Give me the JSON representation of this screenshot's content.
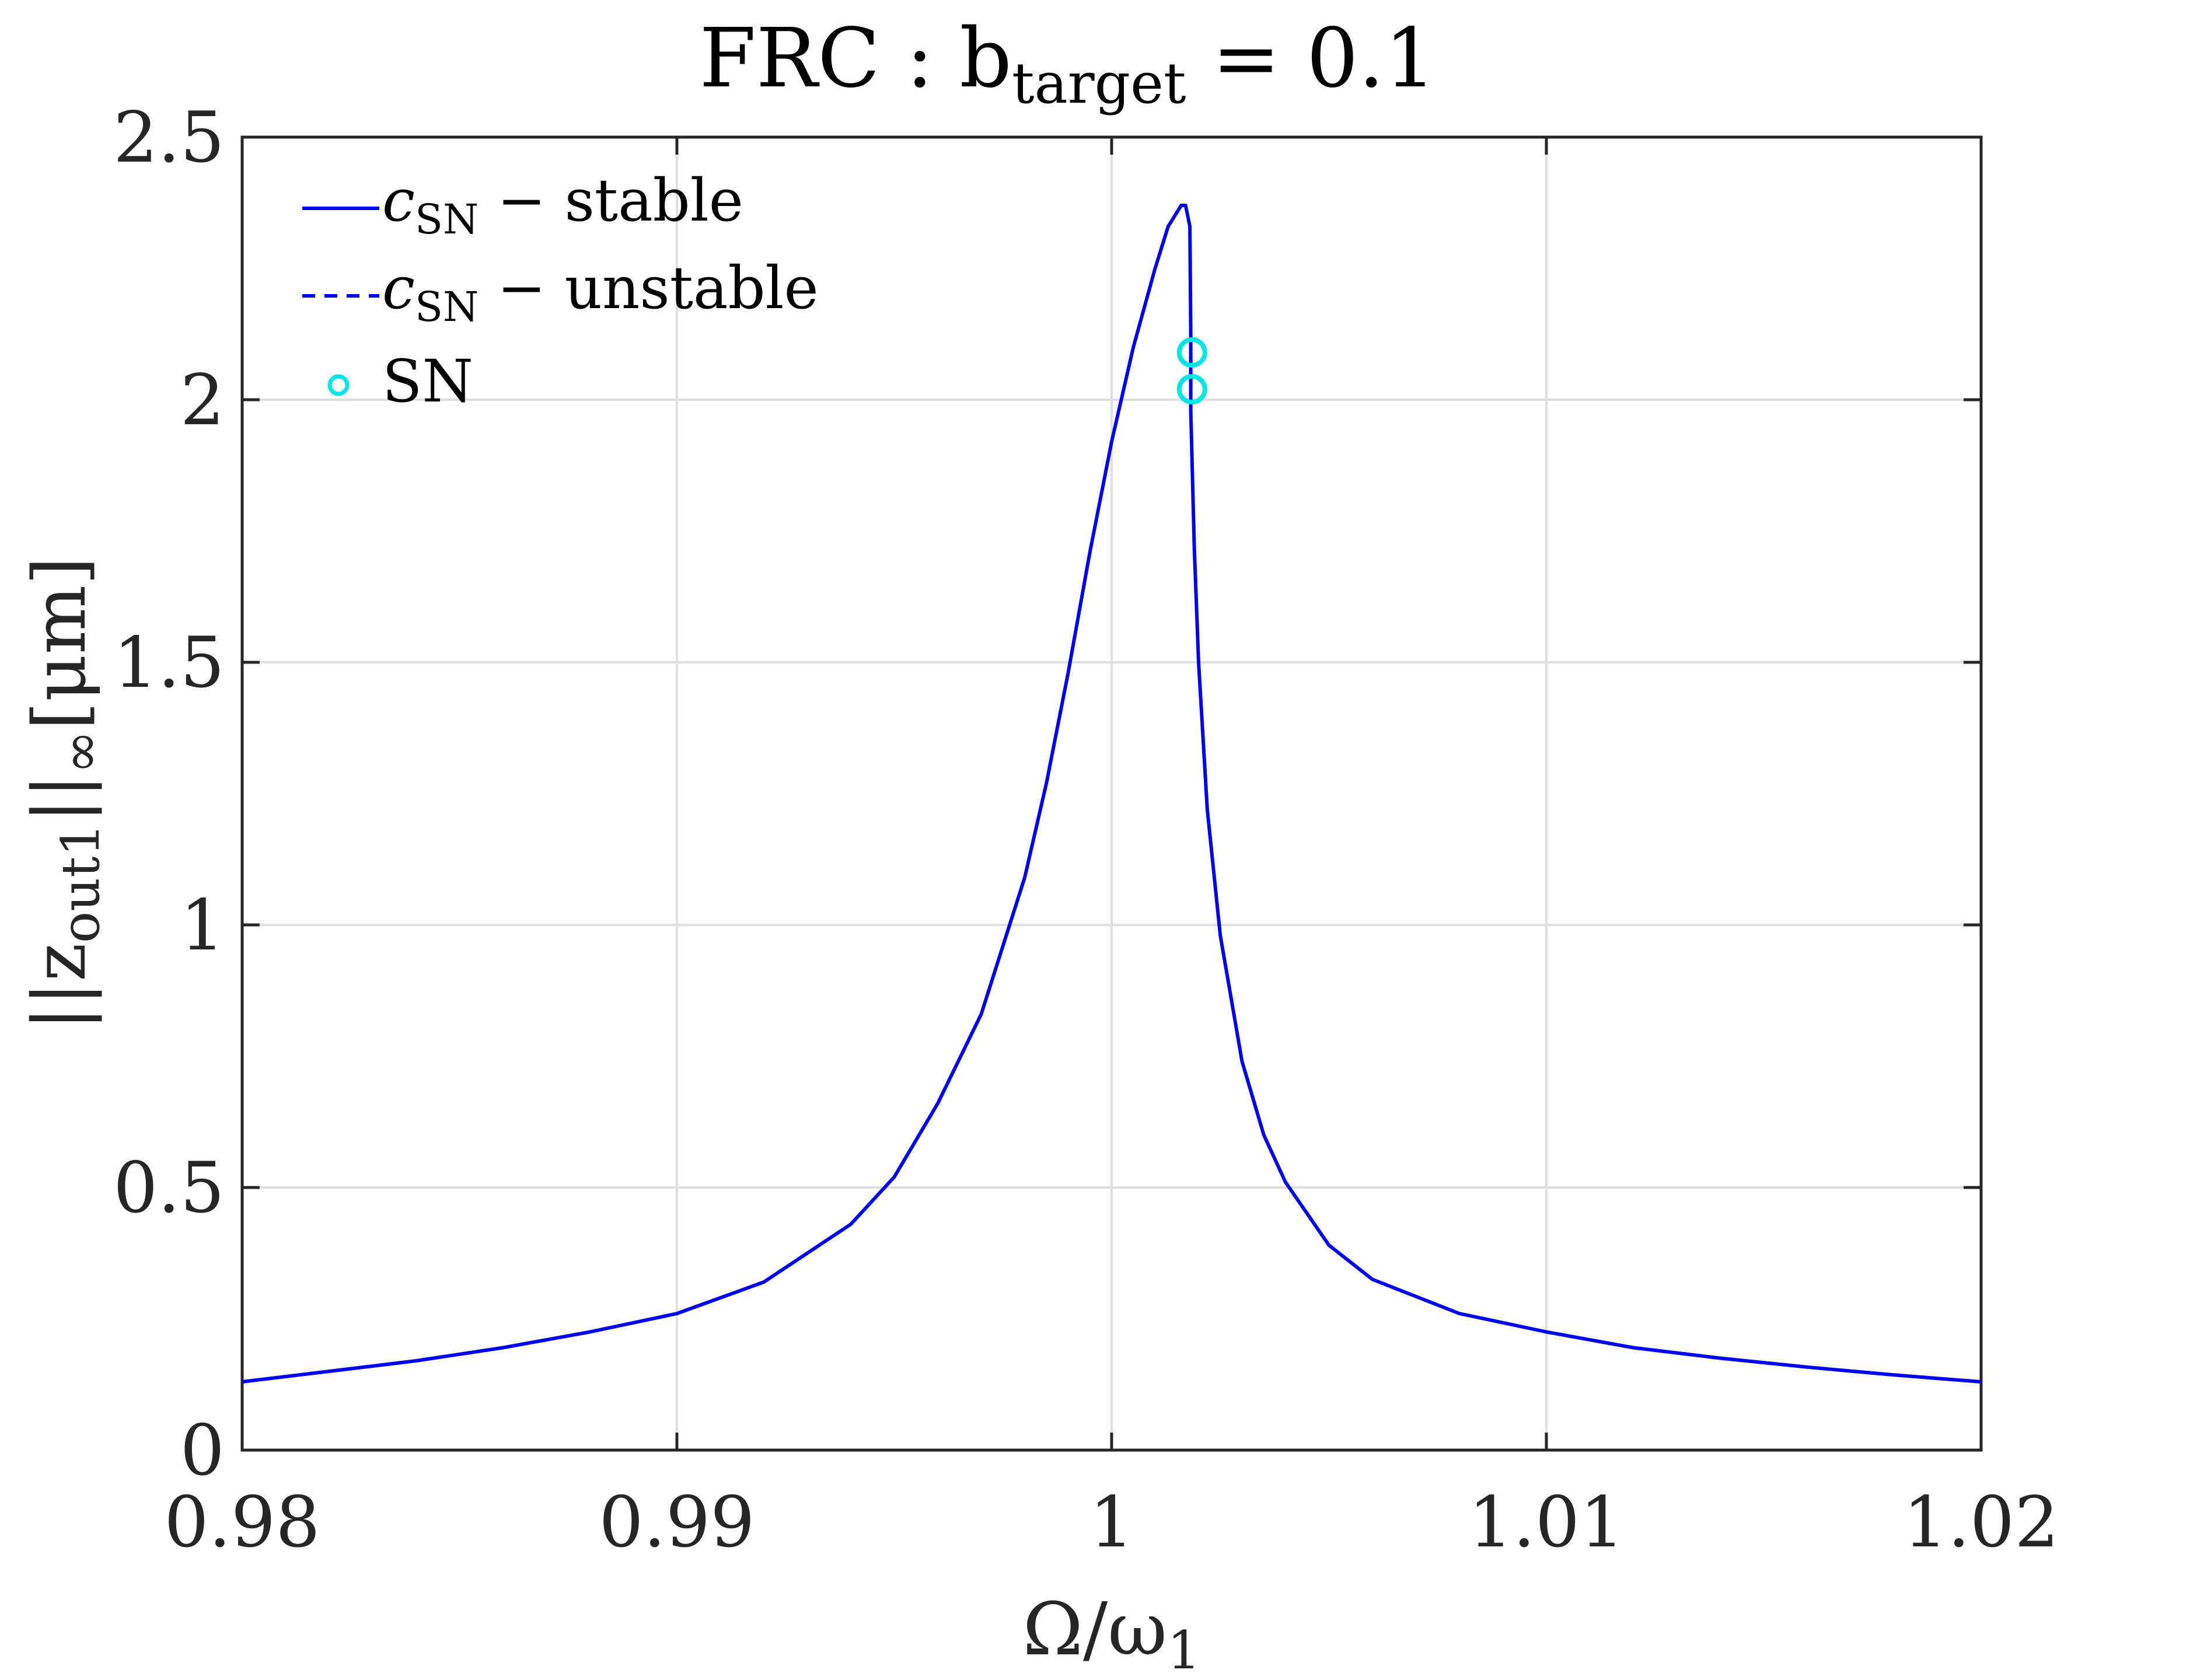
{
  "chart_data": {
    "type": "line",
    "title": {
      "main": "FRC : b",
      "subscript": "target",
      "suffix": " = 0.1"
    },
    "xlabel": {
      "main": "Ω/ω",
      "subscript": "1"
    },
    "ylabel": {
      "prefix": "||z",
      "subscript": "out1",
      "suffix": "||",
      "suffix_subscript": "∞",
      "unit": "[μm]"
    },
    "xlim": [
      0.98,
      1.02
    ],
    "ylim": [
      0,
      2.5
    ],
    "xticks": [
      0.98,
      0.99,
      1.0,
      1.01,
      1.02
    ],
    "xtick_labels": [
      "0.98",
      "0.99",
      "1",
      "1.01",
      "1.02"
    ],
    "yticks": [
      0,
      0.5,
      1.0,
      1.5,
      2.0,
      2.5
    ],
    "ytick_labels": [
      "0",
      "0.5",
      "1",
      "1.5",
      "2",
      "2.5"
    ],
    "grid": true,
    "legend_position": "top-left",
    "colors": {
      "curve": "#0000ee",
      "sn_marker": "#00e5e5",
      "grid": "#dfdfdf",
      "axes": "#262626"
    },
    "series": [
      {
        "name_main": "c",
        "name_subscript": "SN",
        "name_suffix": " − stable",
        "style": "solid",
        "x": [
          0.98,
          0.982,
          0.984,
          0.986,
          0.988,
          0.99,
          0.992,
          0.994,
          0.995,
          0.996,
          0.997,
          0.998,
          0.9985,
          0.999,
          0.9995,
          1.0,
          1.0005,
          1.001,
          1.0013,
          1.0016,
          1.0017,
          1.0018,
          1.00182,
          1.00182,
          1.0019,
          1.002,
          1.0022,
          1.0025,
          1.003,
          1.0035,
          1.004,
          1.005,
          1.006,
          1.008,
          1.01,
          1.012,
          1.014,
          1.016,
          1.018,
          1.02
        ],
        "y": [
          0.13,
          0.15,
          0.17,
          0.195,
          0.225,
          0.26,
          0.32,
          0.43,
          0.52,
          0.66,
          0.83,
          1.09,
          1.27,
          1.48,
          1.71,
          1.92,
          2.1,
          2.25,
          2.33,
          2.37,
          2.37,
          2.33,
          2.13,
          1.98,
          1.72,
          1.5,
          1.22,
          0.98,
          0.74,
          0.6,
          0.51,
          0.39,
          0.325,
          0.26,
          0.225,
          0.195,
          0.175,
          0.158,
          0.143,
          0.13
        ]
      },
      {
        "name_main": "c",
        "name_subscript": "SN",
        "name_suffix": " − unstable",
        "style": "dashed",
        "x": [
          1.00182,
          1.00182
        ],
        "y": [
          2.09,
          2.02
        ]
      }
    ],
    "markers": {
      "name": "SN",
      "points": [
        {
          "x": 1.00185,
          "y": 2.09
        },
        {
          "x": 1.00185,
          "y": 2.02
        }
      ]
    }
  }
}
